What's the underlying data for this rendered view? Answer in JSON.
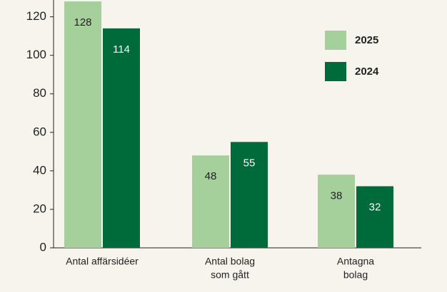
{
  "chart_data": {
    "type": "bar",
    "categories": [
      [
        "Antal affärsidéer"
      ],
      [
        "Antal bolag",
        "som gått"
      ],
      [
        "Antagna",
        "bolag"
      ]
    ],
    "series": [
      {
        "name": "2025",
        "color": "#a5cf9b",
        "values": [
          128,
          48,
          38
        ]
      },
      {
        "name": "2024",
        "color": "#006b3a",
        "values": [
          114,
          55,
          32
        ]
      }
    ],
    "ylim": [
      0,
      128
    ],
    "yticks": [
      0,
      20,
      40,
      60,
      80,
      100,
      120
    ],
    "grid": false,
    "legend": "top-right"
  }
}
